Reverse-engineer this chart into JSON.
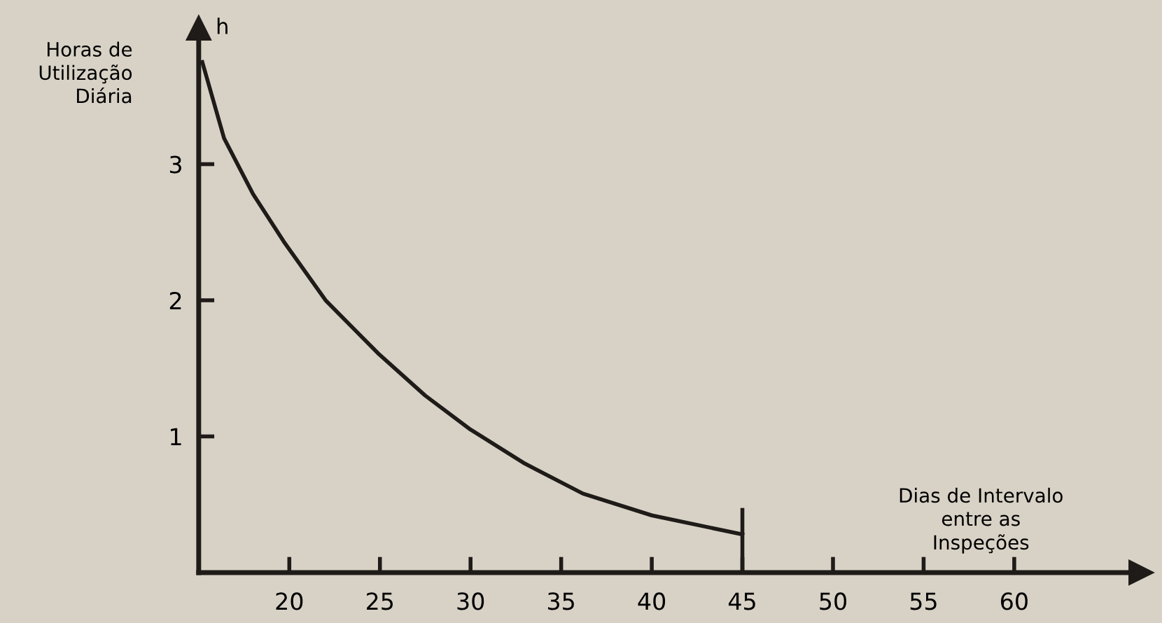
{
  "chart_data": {
    "type": "line",
    "xlabel": "Dias de Intervalo\nentre as\nInspeções",
    "ylabel": "Horas de\nUtilização\nDiária",
    "annotations": [
      "h"
    ],
    "series": [
      {
        "color": "#1e1b18",
        "x": [
          15.2,
          16.4,
          18.0,
          19.7,
          22.0,
          24.9,
          27.5,
          30.0,
          33.0,
          36.2,
          40.0,
          45.0
        ],
        "values": [
          3.75,
          3.19,
          2.78,
          2.43,
          2.0,
          1.61,
          1.3,
          1.05,
          0.8,
          0.58,
          0.42,
          0.28
        ]
      },
      {
        "color": "#1e1b18",
        "x": [
          45,
          45
        ],
        "values": [
          0,
          0.46
        ]
      }
    ],
    "xlim": [
      15,
      67
    ],
    "ylim": [
      0,
      4.0
    ],
    "xticks": [
      20,
      25,
      30,
      35,
      40,
      45,
      50,
      55,
      60
    ],
    "yticks": [
      1,
      2,
      3
    ],
    "grid": false,
    "legend": false,
    "marker": "none",
    "line_style": "solid"
  }
}
